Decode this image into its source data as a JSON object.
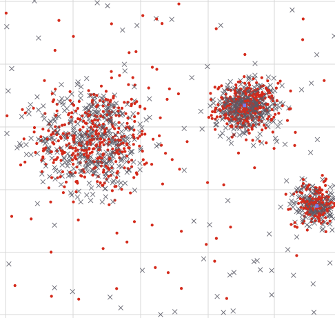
{
  "chart_data": {
    "type": "scatter",
    "title": "",
    "xlabel": "",
    "ylabel": "",
    "xlim": [
      0,
      10
    ],
    "ylim": [
      0,
      10
    ],
    "grid": true,
    "legend": "none",
    "series": [
      {
        "marker": "dot",
        "color": "#d42a1b",
        "clusters": [
          {
            "center": [
              2.7,
              5.55
            ],
            "spread": [
              0.85,
              0.85
            ],
            "count": 380
          },
          {
            "center": [
              7.3,
              6.6
            ],
            "spread": [
              0.45,
              0.38
            ],
            "count": 330
          },
          {
            "center": [
              9.4,
              3.5
            ],
            "spread": [
              0.35,
              0.33
            ],
            "count": 160
          }
        ],
        "background_count": 90
      },
      {
        "marker": "cross",
        "color": "#5a5a66",
        "clusters": [
          {
            "center": [
              2.7,
              5.55
            ],
            "spread": [
              0.85,
              0.85
            ],
            "count": 380
          },
          {
            "center": [
              7.3,
              6.6
            ],
            "spread": [
              0.45,
              0.38
            ],
            "count": 330
          },
          {
            "center": [
              9.4,
              3.5
            ],
            "spread": [
              0.35,
              0.33
            ],
            "count": 160
          }
        ],
        "background_count": 90
      }
    ],
    "highlights": [
      {
        "x": 7.25,
        "y": 6.65,
        "color": "#7b7be6"
      },
      {
        "x": 9.45,
        "y": 3.45,
        "color": "#7b7be6"
      }
    ]
  }
}
